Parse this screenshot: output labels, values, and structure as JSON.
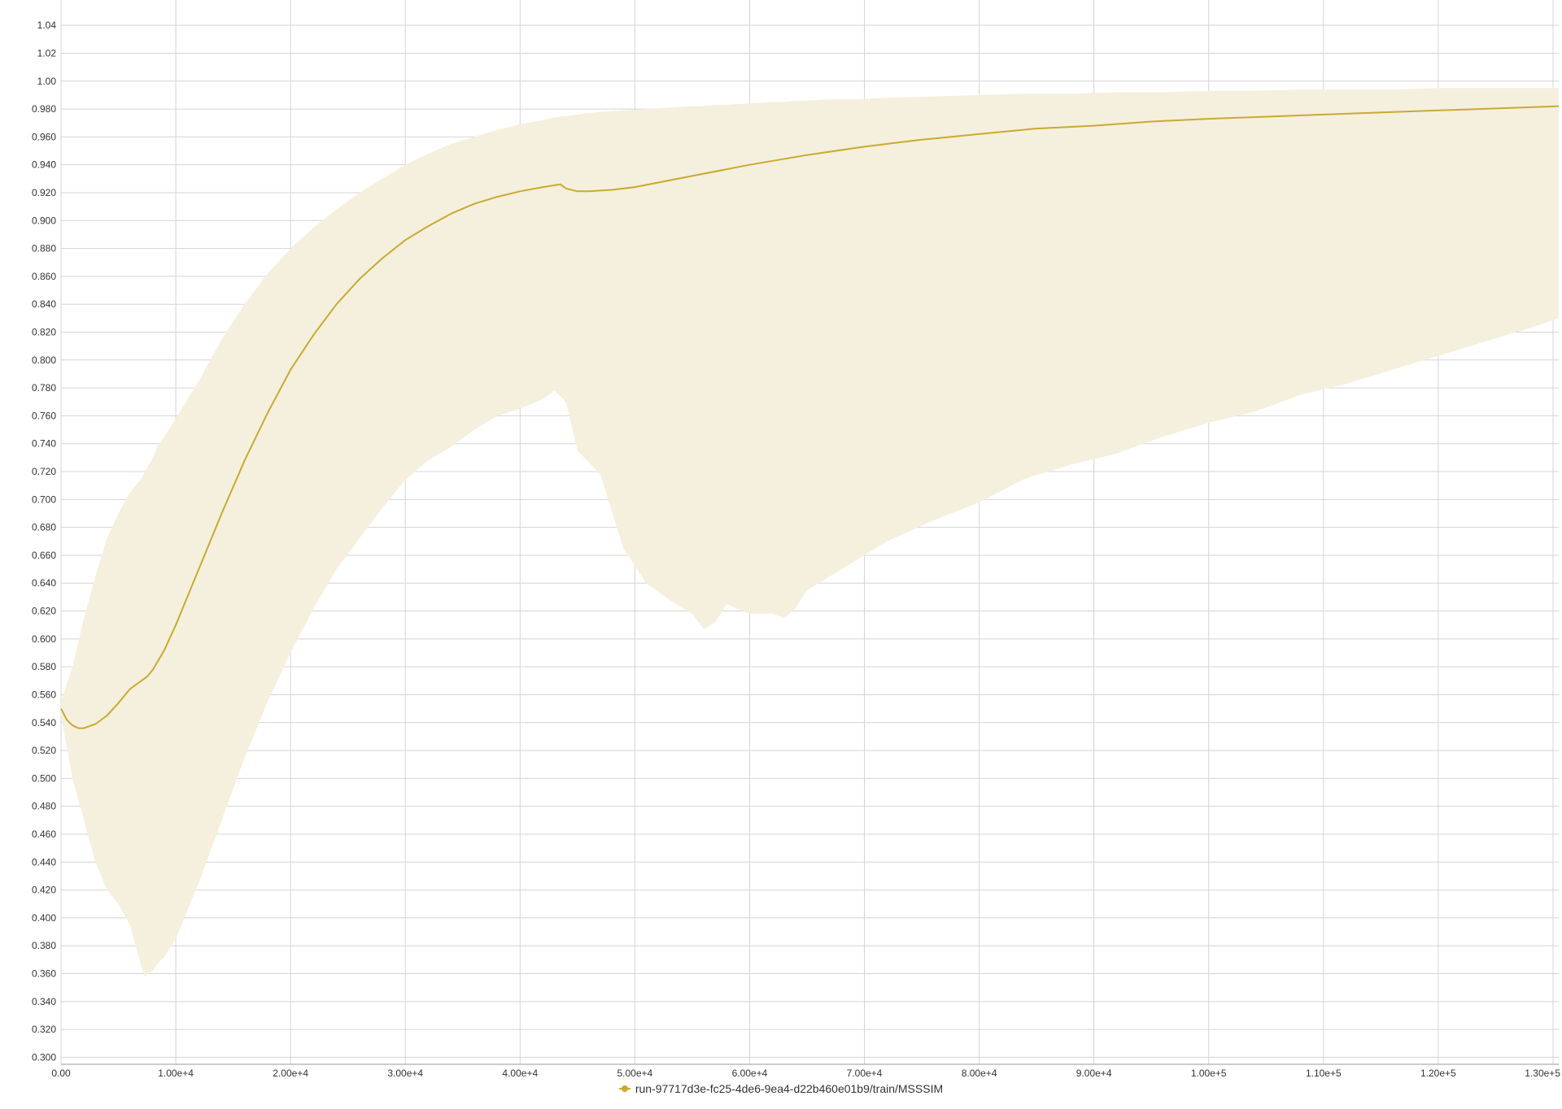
{
  "colors": {
    "line": "#c9aa30",
    "band": "#f5efdd",
    "grid": "#d4d4d4",
    "text": "#333333"
  },
  "chart_data": {
    "type": "line",
    "title": "",
    "xlabel": "",
    "ylabel": "",
    "xlim": [
      0,
      130500
    ],
    "ylim": [
      0.295,
      1.05
    ],
    "grid": true,
    "legend_position": "bottom-center",
    "x_ticks": [
      0,
      10000,
      20000,
      30000,
      40000,
      50000,
      60000,
      70000,
      80000,
      90000,
      100000,
      110000,
      120000,
      130000
    ],
    "x_tick_labels": [
      "0.00",
      "1.00e+4",
      "2.00e+4",
      "3.00e+4",
      "4.00e+4",
      "5.00e+4",
      "6.00e+4",
      "7.00e+4",
      "8.00e+4",
      "9.00e+4",
      "1.00e+5",
      "1.10e+5",
      "1.20e+5",
      "1.30e+5"
    ],
    "y_ticks": [
      0.3,
      0.32,
      0.34,
      0.36,
      0.38,
      0.4,
      0.42,
      0.44,
      0.46,
      0.48,
      0.5,
      0.52,
      0.54,
      0.56,
      0.58,
      0.6,
      0.62,
      0.64,
      0.66,
      0.68,
      0.7,
      0.72,
      0.74,
      0.76,
      0.78,
      0.8,
      0.82,
      0.84,
      0.86,
      0.88,
      0.9,
      0.92,
      0.94,
      0.96,
      0.98,
      1.0,
      1.02,
      1.04
    ],
    "y_tick_labels": [
      "0.300",
      "0.320",
      "0.340",
      "0.360",
      "0.380",
      "0.400",
      "0.420",
      "0.440",
      "0.460",
      "0.480",
      "0.500",
      "0.520",
      "0.540",
      "0.560",
      "0.580",
      "0.600",
      "0.620",
      "0.640",
      "0.660",
      "0.680",
      "0.700",
      "0.720",
      "0.740",
      "0.760",
      "0.780",
      "0.800",
      "0.820",
      "0.840",
      "0.860",
      "0.880",
      "0.900",
      "0.920",
      "0.940",
      "0.960",
      "0.980",
      "1.00",
      "1.02",
      "1.04"
    ],
    "series": [
      {
        "name": "run-97717d3e-fc25-4de6-9ea4-d22b460e01b9/train/MSSSIM",
        "x": [
          0,
          500,
          1000,
          1500,
          2000,
          3000,
          4000,
          5000,
          6000,
          7000,
          7500,
          8000,
          9000,
          10000,
          12000,
          14000,
          16000,
          18000,
          20000,
          22000,
          24000,
          26000,
          28000,
          30000,
          32000,
          34000,
          36000,
          38000,
          40000,
          42000,
          43500,
          44000,
          45000,
          46000,
          48000,
          50000,
          55000,
          60000,
          65000,
          70000,
          75000,
          80000,
          85000,
          90000,
          95000,
          100000,
          110000,
          120000,
          130500
        ],
        "y": [
          0.55,
          0.542,
          0.538,
          0.536,
          0.536,
          0.539,
          0.545,
          0.554,
          0.564,
          0.57,
          0.573,
          0.578,
          0.592,
          0.61,
          0.65,
          0.69,
          0.728,
          0.762,
          0.793,
          0.818,
          0.84,
          0.858,
          0.873,
          0.886,
          0.896,
          0.905,
          0.912,
          0.917,
          0.921,
          0.924,
          0.926,
          0.923,
          0.921,
          0.921,
          0.922,
          0.924,
          0.932,
          0.94,
          0.947,
          0.953,
          0.958,
          0.962,
          0.966,
          0.968,
          0.971,
          0.973,
          0.976,
          0.979,
          0.982
        ]
      }
    ],
    "band": {
      "x": [
        0,
        1000,
        2000,
        3000,
        4000,
        5000,
        6000,
        7000,
        7300,
        8000,
        8500,
        9000,
        10000,
        12000,
        14000,
        16000,
        18000,
        20000,
        22000,
        24000,
        26000,
        28000,
        30000,
        32000,
        34000,
        36000,
        38000,
        40000,
        42000,
        43000,
        44000,
        45000,
        47000,
        49000,
        51000,
        53000,
        55000,
        56000,
        57000,
        58000,
        60000,
        62000,
        63000,
        64000,
        65000,
        67000,
        69000,
        72000,
        76000,
        80000,
        84000,
        88000,
        92000,
        96000,
        100000,
        104000,
        108000,
        112000,
        116000,
        120000,
        124000,
        128000,
        130500
      ],
      "upper": [
        0.555,
        0.58,
        0.615,
        0.645,
        0.672,
        0.69,
        0.705,
        0.715,
        0.72,
        0.73,
        0.74,
        0.745,
        0.758,
        0.785,
        0.815,
        0.84,
        0.862,
        0.88,
        0.895,
        0.908,
        0.92,
        0.93,
        0.94,
        0.948,
        0.955,
        0.96,
        0.965,
        0.969,
        0.972,
        0.974,
        0.975,
        0.976,
        0.978,
        0.979,
        0.98,
        0.981,
        0.982,
        0.982,
        0.983,
        0.983,
        0.984,
        0.985,
        0.985,
        0.986,
        0.986,
        0.987,
        0.987,
        0.988,
        0.989,
        0.99,
        0.991,
        0.991,
        0.992,
        0.992,
        0.993,
        0.993,
        0.994,
        0.994,
        0.994,
        0.995,
        0.995,
        0.995,
        0.995
      ],
      "lower": [
        0.545,
        0.5,
        0.47,
        0.44,
        0.42,
        0.41,
        0.395,
        0.365,
        0.358,
        0.362,
        0.368,
        0.372,
        0.385,
        0.425,
        0.47,
        0.515,
        0.555,
        0.59,
        0.622,
        0.65,
        0.672,
        0.694,
        0.714,
        0.728,
        0.738,
        0.75,
        0.76,
        0.765,
        0.772,
        0.778,
        0.77,
        0.735,
        0.718,
        0.665,
        0.64,
        0.628,
        0.618,
        0.607,
        0.612,
        0.625,
        0.618,
        0.618,
        0.615,
        0.622,
        0.635,
        0.645,
        0.655,
        0.67,
        0.685,
        0.698,
        0.715,
        0.725,
        0.733,
        0.745,
        0.755,
        0.763,
        0.775,
        0.783,
        0.793,
        0.803,
        0.813,
        0.823,
        0.83
      ]
    }
  }
}
